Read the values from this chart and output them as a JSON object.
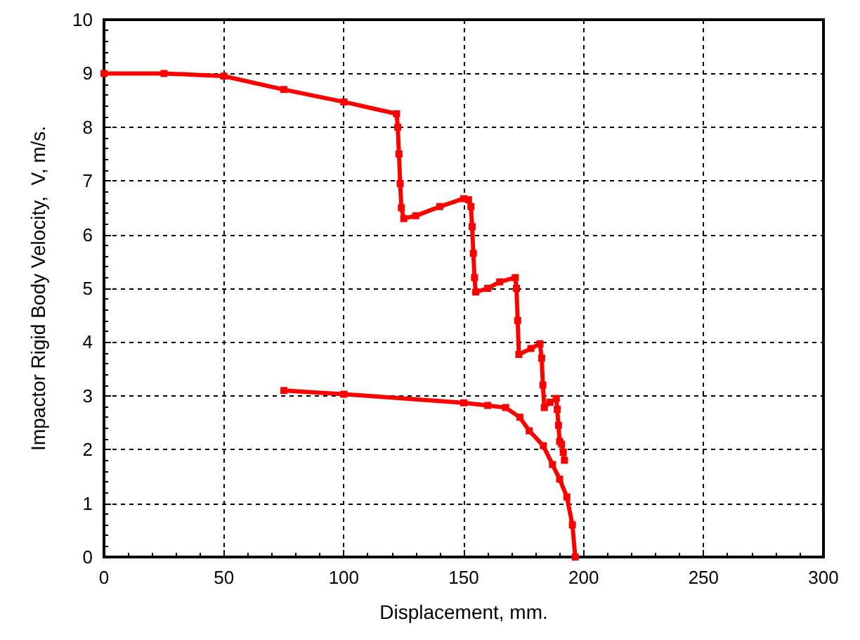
{
  "chart_data": {
    "type": "line",
    "xlabel": "Displacement, mm.",
    "ylabel": "Impactor Rigid Body Velocity,  V, m/s.",
    "xlim": [
      0,
      300
    ],
    "ylim": [
      0,
      10
    ],
    "xticks": [
      0,
      50,
      100,
      150,
      200,
      250,
      300
    ],
    "yticks": [
      0,
      1,
      2,
      3,
      4,
      5,
      6,
      7,
      8,
      9,
      10
    ],
    "grid": true,
    "marker": "square",
    "line_style": "solid",
    "series": [
      {
        "color": "#ff0000",
        "x": [
          0,
          25,
          50,
          75,
          100,
          122,
          122.5,
          123,
          123.5,
          124,
          125,
          130,
          140,
          150,
          152,
          153,
          153.5,
          154,
          154.5,
          155,
          160,
          165,
          171.5,
          172,
          172.5,
          173,
          178,
          181.8,
          182.5,
          183,
          183.6,
          186,
          188.6,
          189,
          189.5,
          190,
          190.8,
          191.5,
          192
        ],
        "values": [
          9.0,
          9.0,
          8.95,
          8.7,
          8.47,
          8.25,
          8.0,
          7.5,
          6.95,
          6.5,
          6.3,
          6.35,
          6.52,
          6.67,
          6.65,
          6.52,
          6.15,
          5.65,
          5.2,
          4.93,
          5.0,
          5.12,
          5.2,
          5.0,
          4.4,
          3.77,
          3.88,
          3.97,
          3.7,
          3.2,
          2.78,
          2.88,
          2.95,
          2.75,
          2.45,
          2.15,
          2.1,
          1.95,
          1.8
        ]
      },
      {
        "color": "#ff0000",
        "x": [
          75,
          100,
          150,
          160,
          167.5,
          173.4,
          177.3,
          183.2,
          187,
          190,
          193,
          195.3,
          196.5
        ],
        "values": [
          3.1,
          3.03,
          2.87,
          2.82,
          2.78,
          2.6,
          2.35,
          2.07,
          1.72,
          1.45,
          1.12,
          0.6,
          0
        ]
      }
    ]
  }
}
